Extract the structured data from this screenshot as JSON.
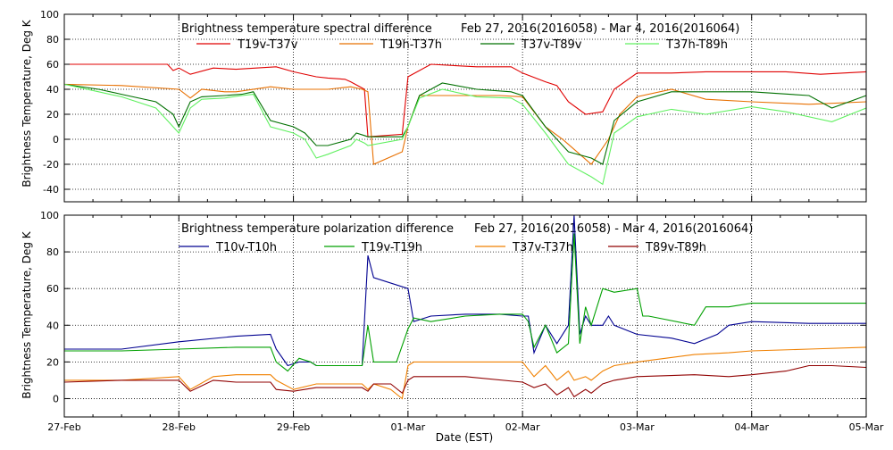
{
  "chart_data": [
    {
      "type": "line",
      "title": "Brightness temperature spectral difference",
      "date_range": "Feb 27, 2016(2016058) - Mar  4, 2016(2016064)",
      "ylabel": "Brightness Temperature, Deg K",
      "xlabel": "",
      "ylim": [
        -50,
        100
      ],
      "yticks": [
        -40,
        -20,
        0,
        20,
        40,
        60,
        80,
        100
      ],
      "xlim": [
        0,
        7
      ],
      "grid": true,
      "legend_position": "top",
      "series": [
        {
          "name": "T19v-T37v",
          "color": "#e00000",
          "x": [
            0,
            0.9,
            0.95,
            1.0,
            1.1,
            1.3,
            1.5,
            1.85,
            2.0,
            2.2,
            2.3,
            2.45,
            2.5,
            2.62,
            2.65,
            2.95,
            3.0,
            3.2,
            3.6,
            3.9,
            4.0,
            4.2,
            4.3,
            4.4,
            4.55,
            4.7,
            4.8,
            5.0,
            5.3,
            5.6,
            6.0,
            6.3,
            6.6,
            7.0
          ],
          "y": [
            60,
            60,
            55,
            57,
            52,
            57,
            56,
            58,
            54,
            50,
            49,
            48,
            46,
            40,
            2,
            4,
            50,
            60,
            58,
            58,
            53,
            46,
            43,
            30,
            20,
            22,
            40,
            53,
            53,
            54,
            54,
            54,
            52,
            54
          ]
        },
        {
          "name": "T19h-T37h",
          "color": "#e87000",
          "x": [
            0,
            0.5,
            1.0,
            1.1,
            1.2,
            1.4,
            1.5,
            1.8,
            2.0,
            2.2,
            2.3,
            2.5,
            2.6,
            2.65,
            2.7,
            2.95,
            3.0,
            3.1,
            3.4,
            3.8,
            4.0,
            4.2,
            4.35,
            4.5,
            4.6,
            4.75,
            4.85,
            5.0,
            5.3,
            5.6,
            6.0,
            6.5,
            7.0
          ],
          "y": [
            44,
            43,
            40,
            33,
            40,
            38,
            38,
            42,
            40,
            40,
            40,
            42,
            40,
            38,
            -20,
            -10,
            10,
            35,
            35,
            35,
            34,
            10,
            0,
            -12,
            -20,
            0,
            20,
            34,
            40,
            32,
            30,
            28,
            30
          ]
        },
        {
          "name": "T37v-T89v",
          "color": "#007000",
          "x": [
            0,
            0.3,
            0.5,
            0.8,
            0.95,
            1.0,
            1.05,
            1.1,
            1.2,
            1.4,
            1.55,
            1.65,
            1.8,
            2.0,
            2.1,
            2.2,
            2.3,
            2.5,
            2.55,
            2.62,
            2.65,
            2.95,
            3.0,
            3.1,
            3.3,
            3.6,
            3.9,
            4.0,
            4.2,
            4.4,
            4.6,
            4.7,
            4.8,
            5.0,
            5.3,
            5.5,
            6.0,
            6.5,
            6.7,
            7.0
          ],
          "y": [
            44,
            40,
            36,
            30,
            20,
            10,
            20,
            30,
            34,
            35,
            36,
            38,
            15,
            10,
            5,
            -5,
            -5,
            0,
            5,
            3,
            2,
            2,
            10,
            35,
            45,
            40,
            38,
            35,
            10,
            -10,
            -15,
            -20,
            15,
            30,
            38,
            38,
            38,
            35,
            25,
            35
          ]
        },
        {
          "name": "T37h-T89h",
          "color": "#60f060",
          "x": [
            0,
            0.3,
            0.5,
            0.8,
            0.95,
            1.0,
            1.05,
            1.1,
            1.2,
            1.4,
            1.55,
            1.65,
            1.8,
            2.0,
            2.1,
            2.2,
            2.3,
            2.5,
            2.55,
            2.62,
            2.65,
            2.95,
            3.0,
            3.1,
            3.3,
            3.6,
            3.9,
            4.0,
            4.2,
            4.4,
            4.6,
            4.7,
            4.8,
            5.0,
            5.3,
            5.6,
            6.0,
            6.3,
            6.7,
            7.0
          ],
          "y": [
            44,
            38,
            34,
            25,
            10,
            5,
            15,
            25,
            32,
            33,
            35,
            36,
            10,
            5,
            0,
            -15,
            -12,
            -5,
            0,
            -3,
            -5,
            0,
            10,
            33,
            40,
            34,
            33,
            28,
            5,
            -20,
            -30,
            -36,
            5,
            18,
            24,
            20,
            26,
            22,
            14,
            25
          ]
        }
      ]
    },
    {
      "type": "line",
      "title": "Brightness temperature polarization difference",
      "date_range": "Feb 27, 2016(2016058) - Mar  4, 2016(2016064)",
      "ylabel": "Brightness Temperature, Deg K",
      "xlabel": "Date (EST)",
      "ylim": [
        -10,
        100
      ],
      "yticks": [
        0,
        20,
        40,
        60,
        80,
        100
      ],
      "xlim": [
        0,
        7
      ],
      "x_tick_labels": [
        "27-Feb",
        "28-Feb",
        "29-Feb",
        "01-Mar",
        "02-Mar",
        "03-Mar",
        "04-Mar",
        "05-Mar"
      ],
      "grid": true,
      "legend_position": "top",
      "series": [
        {
          "name": "T10v-T10h",
          "color": "#000090",
          "x": [
            0,
            0.5,
            1.0,
            1.5,
            1.8,
            1.85,
            1.95,
            2.05,
            2.15,
            2.2,
            2.6,
            2.65,
            2.7,
            3.0,
            3.05,
            3.2,
            3.5,
            3.8,
            4.0,
            4.05,
            4.1,
            4.2,
            4.3,
            4.4,
            4.45,
            4.5,
            4.55,
            4.6,
            4.7,
            4.75,
            4.8,
            5.0,
            5.3,
            5.5,
            5.7,
            5.8,
            6.0,
            6.5,
            7.0
          ],
          "y": [
            27,
            27,
            31,
            34,
            35,
            27,
            18,
            20,
            20,
            18,
            18,
            78,
            66,
            60,
            42,
            45,
            46,
            46,
            45,
            45,
            25,
            40,
            30,
            40,
            100,
            35,
            45,
            40,
            40,
            45,
            40,
            35,
            33,
            30,
            35,
            40,
            42,
            41,
            41
          ]
        },
        {
          "name": "T19v-T19h",
          "color": "#00a000",
          "x": [
            0,
            0.5,
            1.0,
            1.5,
            1.8,
            1.85,
            1.95,
            2.05,
            2.15,
            2.2,
            2.6,
            2.65,
            2.7,
            2.9,
            3.0,
            3.05,
            3.2,
            3.5,
            3.8,
            4.0,
            4.05,
            4.1,
            4.2,
            4.3,
            4.4,
            4.45,
            4.5,
            4.55,
            4.6,
            4.7,
            4.8,
            5.0,
            5.05,
            5.1,
            5.5,
            5.6,
            5.8,
            6.0,
            6.5,
            7.0
          ],
          "y": [
            26,
            26,
            27,
            28,
            28,
            20,
            15,
            22,
            20,
            18,
            18,
            40,
            20,
            20,
            38,
            44,
            42,
            45,
            46,
            46,
            42,
            28,
            40,
            25,
            30,
            90,
            30,
            50,
            40,
            60,
            58,
            60,
            45,
            45,
            40,
            50,
            50,
            52,
            52,
            52
          ]
        },
        {
          "name": "T37v-T37h",
          "color": "#f08000",
          "x": [
            0,
            0.5,
            1.0,
            1.1,
            1.3,
            1.5,
            1.8,
            1.85,
            2.0,
            2.2,
            2.6,
            2.65,
            2.7,
            2.85,
            2.95,
            3.0,
            3.05,
            3.5,
            4.0,
            4.1,
            4.2,
            4.3,
            4.4,
            4.45,
            4.55,
            4.6,
            4.7,
            4.8,
            5.0,
            5.5,
            5.8,
            6.0,
            6.5,
            7.0
          ],
          "y": [
            10,
            10,
            12,
            5,
            12,
            13,
            13,
            10,
            5,
            8,
            8,
            5,
            8,
            5,
            0,
            18,
            20,
            20,
            20,
            12,
            18,
            10,
            15,
            10,
            12,
            10,
            15,
            18,
            20,
            24,
            25,
            26,
            27,
            28
          ]
        },
        {
          "name": "T89v-T89h",
          "color": "#900000",
          "x": [
            0,
            0.5,
            1.0,
            1.1,
            1.3,
            1.5,
            1.8,
            1.85,
            2.0,
            2.2,
            2.6,
            2.65,
            2.7,
            2.85,
            2.95,
            3.0,
            3.05,
            3.5,
            4.0,
            4.1,
            4.2,
            4.3,
            4.4,
            4.45,
            4.55,
            4.6,
            4.7,
            4.8,
            5.0,
            5.5,
            5.8,
            6.0,
            6.3,
            6.5,
            6.7,
            7.0
          ],
          "y": [
            9,
            10,
            10,
            4,
            10,
            9,
            9,
            5,
            4,
            6,
            6,
            4,
            8,
            8,
            3,
            10,
            12,
            12,
            9,
            6,
            8,
            2,
            6,
            1,
            5,
            3,
            8,
            10,
            12,
            13,
            12,
            13,
            15,
            18,
            18,
            17
          ]
        }
      ]
    }
  ]
}
